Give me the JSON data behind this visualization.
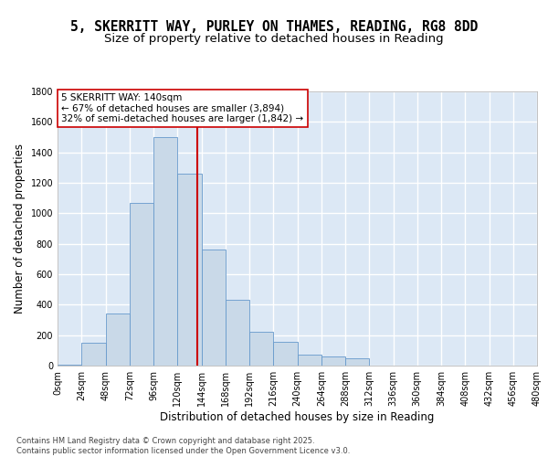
{
  "title1": "5, SKERRITT WAY, PURLEY ON THAMES, READING, RG8 8DD",
  "title2": "Size of property relative to detached houses in Reading",
  "xlabel": "Distribution of detached houses by size in Reading",
  "ylabel": "Number of detached properties",
  "bin_edges": [
    0,
    24,
    48,
    72,
    96,
    120,
    144,
    168,
    192,
    216,
    240,
    264,
    288,
    312,
    336,
    360,
    384,
    408,
    432,
    456,
    480
  ],
  "bar_heights": [
    5,
    150,
    340,
    1070,
    1500,
    1260,
    760,
    430,
    220,
    155,
    75,
    60,
    50,
    0,
    0,
    0,
    0,
    0,
    0,
    0
  ],
  "bar_color": "#c9d9e8",
  "bar_edgecolor": "#6699cc",
  "bg_color": "#dce8f5",
  "grid_color": "#ffffff",
  "vline_x": 140,
  "vline_color": "#cc0000",
  "annotation_text": "5 SKERRITT WAY: 140sqm\n← 67% of detached houses are smaller (3,894)\n32% of semi-detached houses are larger (1,842) →",
  "annotation_box_color": "#cc0000",
  "ylim": [
    0,
    1800
  ],
  "yticks": [
    0,
    200,
    400,
    600,
    800,
    1000,
    1200,
    1400,
    1600,
    1800
  ],
  "xtick_labels": [
    "0sqm",
    "24sqm",
    "48sqm",
    "72sqm",
    "96sqm",
    "120sqm",
    "144sqm",
    "168sqm",
    "192sqm",
    "216sqm",
    "240sqm",
    "264sqm",
    "288sqm",
    "312sqm",
    "336sqm",
    "360sqm",
    "384sqm",
    "408sqm",
    "432sqm",
    "456sqm",
    "480sqm"
  ],
  "footer": "Contains HM Land Registry data © Crown copyright and database right 2025.\nContains public sector information licensed under the Open Government Licence v3.0.",
  "title_fontsize": 10.5,
  "subtitle_fontsize": 9.5,
  "axis_label_fontsize": 8.5,
  "tick_fontsize": 7,
  "annotation_fontsize": 7.5,
  "footer_fontsize": 6.0
}
